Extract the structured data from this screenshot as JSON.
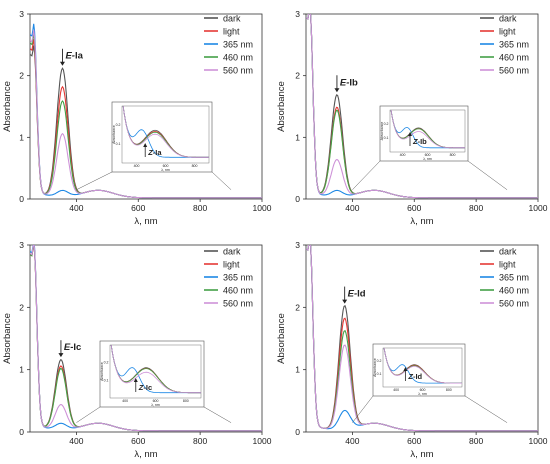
{
  "chart_data": [
    {
      "type": "line",
      "panel": "Ia",
      "xlabel": "λ, nm",
      "ylabel": "Absorbance",
      "xlim": [
        250,
        1000
      ],
      "ylim": [
        0,
        3
      ],
      "xticks": [
        "400",
        "600",
        "800",
        "1000"
      ],
      "yticks": [
        "0",
        "1",
        "2",
        "3"
      ],
      "legend_position": "top-right",
      "series": [
        {
          "name": "dark",
          "color": "#555555",
          "peak_x": 355,
          "peak_y": 2.08,
          "uv_y": 2.35
        },
        {
          "name": "light",
          "color": "#e53935",
          "peak_x": 355,
          "peak_y": 1.78,
          "uv_y": 2.45
        },
        {
          "name": "365 nm",
          "color": "#1e88e5",
          "peak_x": 355,
          "peak_y": 0.1,
          "uv_y": 2.7
        },
        {
          "name": "460 nm",
          "color": "#43a047",
          "peak_x": 355,
          "peak_y": 1.55,
          "uv_y": 2.55
        },
        {
          "name": "560 nm",
          "color": "#ce93d8",
          "peak_x": 355,
          "peak_y": 1.02,
          "uv_y": 2.6
        }
      ],
      "annotations": {
        "main_prefix": "E-",
        "main_name": "Ia",
        "inset_prefix": "Z-",
        "inset_name": "Ia"
      },
      "inset": {
        "xlabel": "λ, nm",
        "ylabel": "Absorbance",
        "xticks": [
          "400",
          "600",
          "800"
        ],
        "yticks": [
          "0.1",
          "0.2"
        ],
        "crossover_x": 460
      }
    },
    {
      "type": "line",
      "panel": "Ib",
      "xlabel": "λ, nm",
      "ylabel": "Absorbance",
      "xlim": [
        250,
        1000
      ],
      "ylim": [
        0,
        3
      ],
      "xticks": [
        "400",
        "600",
        "800",
        "1000"
      ],
      "yticks": [
        "0",
        "1",
        "2",
        "3"
      ],
      "legend_position": "top-right",
      "series": [
        {
          "name": "dark",
          "color": "#555555",
          "peak_x": 350,
          "peak_y": 1.65,
          "uv_y": 3.0
        },
        {
          "name": "light",
          "color": "#e53935",
          "peak_x": 350,
          "peak_y": 1.45,
          "uv_y": 3.0
        },
        {
          "name": "365 nm",
          "color": "#1e88e5",
          "peak_x": 350,
          "peak_y": 0.1,
          "uv_y": 3.0
        },
        {
          "name": "460 nm",
          "color": "#43a047",
          "peak_x": 350,
          "peak_y": 1.4,
          "uv_y": 3.0
        },
        {
          "name": "560 nm",
          "color": "#ce93d8",
          "peak_x": 350,
          "peak_y": 0.6,
          "uv_y": 3.0
        }
      ],
      "annotations": {
        "main_prefix": "E-",
        "main_name": "Ib",
        "inset_prefix": "Z-",
        "inset_name": "Ib"
      },
      "inset": {
        "xlabel": "λ, nm",
        "ylabel": "Absorbance",
        "xticks": [
          "400",
          "600",
          "800"
        ],
        "yticks": [
          "0.1",
          "0.2"
        ],
        "crossover_x": 460
      }
    },
    {
      "type": "line",
      "panel": "Ic",
      "xlabel": "λ, nm",
      "ylabel": "Absorbance",
      "xlim": [
        250,
        1000
      ],
      "ylim": [
        0,
        3
      ],
      "xticks": [
        "400",
        "600",
        "800",
        "1000"
      ],
      "yticks": [
        "0",
        "1",
        "2",
        "3"
      ],
      "legend_position": "top-right",
      "series": [
        {
          "name": "dark",
          "color": "#555555",
          "peak_x": 350,
          "peak_y": 1.12,
          "uv_y": 2.9
        },
        {
          "name": "light",
          "color": "#e53935",
          "peak_x": 350,
          "peak_y": 1.02,
          "uv_y": 2.9
        },
        {
          "name": "365 nm",
          "color": "#1e88e5",
          "peak_x": 350,
          "peak_y": 0.1,
          "uv_y": 2.95
        },
        {
          "name": "460 nm",
          "color": "#43a047",
          "peak_x": 350,
          "peak_y": 0.98,
          "uv_y": 2.9
        },
        {
          "name": "560 nm",
          "color": "#ce93d8",
          "peak_x": 350,
          "peak_y": 0.4,
          "uv_y": 2.92
        }
      ],
      "annotations": {
        "main_prefix": "E-",
        "main_name": "Ic",
        "inset_prefix": "Z-",
        "inset_name": "Ic"
      },
      "inset": {
        "xlabel": "λ, nm",
        "ylabel": "Absorbance",
        "xticks": [
          "400",
          "600",
          "800"
        ],
        "yticks": [
          "0.1",
          "0.2"
        ],
        "crossover_x": 470
      }
    },
    {
      "type": "line",
      "panel": "Id",
      "xlabel": "λ, nm",
      "ylabel": "Absorbance",
      "xlim": [
        250,
        1000
      ],
      "ylim": [
        0,
        3
      ],
      "xticks": [
        "400",
        "600",
        "800",
        "1000"
      ],
      "yticks": [
        "0",
        "1",
        "2",
        "3"
      ],
      "legend_position": "top-right",
      "series": [
        {
          "name": "dark",
          "color": "#555555",
          "peak_x": 375,
          "peak_y": 1.98,
          "uv_y": 3.0
        },
        {
          "name": "light",
          "color": "#e53935",
          "peak_x": 375,
          "peak_y": 1.78,
          "uv_y": 3.0
        },
        {
          "name": "365 nm",
          "color": "#1e88e5",
          "peak_x": 375,
          "peak_y": 0.3,
          "uv_y": 3.0
        },
        {
          "name": "460 nm",
          "color": "#43a047",
          "peak_x": 375,
          "peak_y": 1.58,
          "uv_y": 3.0
        },
        {
          "name": "560 nm",
          "color": "#ce93d8",
          "peak_x": 375,
          "peak_y": 1.35,
          "uv_y": 3.0
        }
      ],
      "annotations": {
        "main_prefix": "E-",
        "main_name": "Id",
        "inset_prefix": "Z-",
        "inset_name": "Id"
      },
      "inset": {
        "xlabel": "λ, nm",
        "ylabel": "Absorbance",
        "xticks": [
          "400",
          "600",
          "800"
        ],
        "yticks": [
          "0.1",
          "0.2"
        ],
        "crossover_x": 470
      }
    }
  ]
}
